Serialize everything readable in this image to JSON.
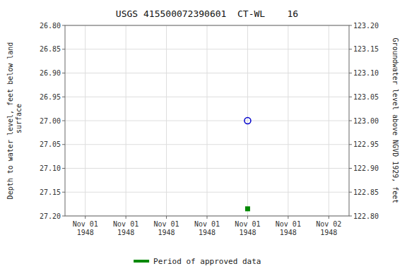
{
  "chart_data": {
    "type": "scatter",
    "title": "USGS 415500072390601  CT-WL    16",
    "y_label": "Depth to water level, feet below land\n surface",
    "y2_label": "Groundwater level above NGVD 1929, feet",
    "categories": [
      "Nov 01\n1948",
      "Nov 01\n1948",
      "Nov 01\n1948",
      "Nov 01\n1948",
      "Nov 01\n1948",
      "Nov 01\n1948",
      "Nov 02\n1948"
    ],
    "series": [
      {
        "color": "#0000cc",
        "marker": "circle",
        "values": [
          null,
          null,
          null,
          null,
          27.0,
          null,
          null
        ]
      },
      {
        "name": "Period of approved data",
        "color": "#008800",
        "marker": "square",
        "values": [
          null,
          null,
          null,
          null,
          27.185,
          null,
          null
        ]
      }
    ],
    "ylim": [
      27.2,
      26.8
    ],
    "yticks": [
      {
        "value": 26.8,
        "label": "26.80"
      },
      26.85,
      {
        "value": 26.9,
        "label": "26.90"
      },
      26.95,
      {
        "value": 27.0,
        "label": "27.00"
      },
      27.05,
      {
        "value": 27.1,
        "label": "27.10"
      },
      27.15,
      {
        "value": 27.2,
        "label": "27.20"
      }
    ],
    "y2lim": [
      122.8,
      123.2
    ],
    "y2ticks": [
      {
        "value": 123.2,
        "label": "123.20"
      },
      123.15,
      {
        "value": 123.1,
        "label": "123.10"
      },
      123.05,
      {
        "value": 123.0,
        "label": "123.00"
      },
      122.95,
      {
        "value": 122.9,
        "label": "122.90"
      },
      122.85,
      {
        "value": 122.8,
        "label": "122.80"
      }
    ],
    "grid": true,
    "legend": "bottom"
  }
}
